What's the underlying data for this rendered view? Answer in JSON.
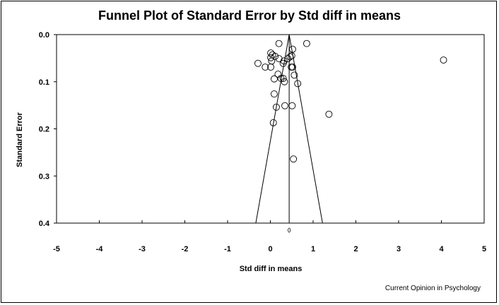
{
  "chart_data": {
    "type": "scatter",
    "title": "Funnel Plot of Standard Error by Std diff in means",
    "xlabel": "Std diff in means",
    "ylabel": "Standard Error",
    "xlim": [
      -5,
      5
    ],
    "ylim": [
      0.0,
      0.4
    ],
    "y_inverted": true,
    "xticks": [
      "-5",
      "-4",
      "-3",
      "-2",
      "-1",
      "0",
      "1",
      "2",
      "3",
      "4",
      "5"
    ],
    "yticks": [
      "0.0",
      "0.1",
      "0.2",
      "0.3",
      "0.4"
    ],
    "grid": false,
    "mean_effect": 0.44,
    "funnel_bottom": [
      -0.34,
      1.22
    ],
    "points": [
      {
        "x": 0.2,
        "y": 0.019
      },
      {
        "x": 0.85,
        "y": 0.019
      },
      {
        "x": 0.52,
        "y": 0.031
      },
      {
        "x": 0.01,
        "y": 0.039
      },
      {
        "x": 0.05,
        "y": 0.043
      },
      {
        "x": 0.11,
        "y": 0.046
      },
      {
        "x": 0.5,
        "y": 0.045
      },
      {
        "x": 0.46,
        "y": 0.047
      },
      {
        "x": 0.01,
        "y": 0.049
      },
      {
        "x": 0.2,
        "y": 0.051
      },
      {
        "x": 0.41,
        "y": 0.051
      },
      {
        "x": 0.32,
        "y": 0.056
      },
      {
        "x": 0.03,
        "y": 0.056
      },
      {
        "x": 0.3,
        "y": 0.061
      },
      {
        "x": -0.29,
        "y": 0.061
      },
      {
        "x": -0.12,
        "y": 0.069
      },
      {
        "x": 0.01,
        "y": 0.069
      },
      {
        "x": 0.49,
        "y": 0.069
      },
      {
        "x": 0.52,
        "y": 0.069
      },
      {
        "x": 0.18,
        "y": 0.084
      },
      {
        "x": 0.56,
        "y": 0.086
      },
      {
        "x": 0.09,
        "y": 0.094
      },
      {
        "x": 0.25,
        "y": 0.093
      },
      {
        "x": 0.3,
        "y": 0.093
      },
      {
        "x": 0.33,
        "y": 0.1
      },
      {
        "x": 0.64,
        "y": 0.104
      },
      {
        "x": 0.09,
        "y": 0.126
      },
      {
        "x": 0.34,
        "y": 0.151
      },
      {
        "x": 0.51,
        "y": 0.151
      },
      {
        "x": 0.14,
        "y": 0.154
      },
      {
        "x": 1.37,
        "y": 0.169
      },
      {
        "x": 0.07,
        "y": 0.187
      },
      {
        "x": 0.54,
        "y": 0.264
      },
      {
        "x": 4.05,
        "y": 0.054
      }
    ]
  },
  "credit": "Current Opinion in Psychology"
}
